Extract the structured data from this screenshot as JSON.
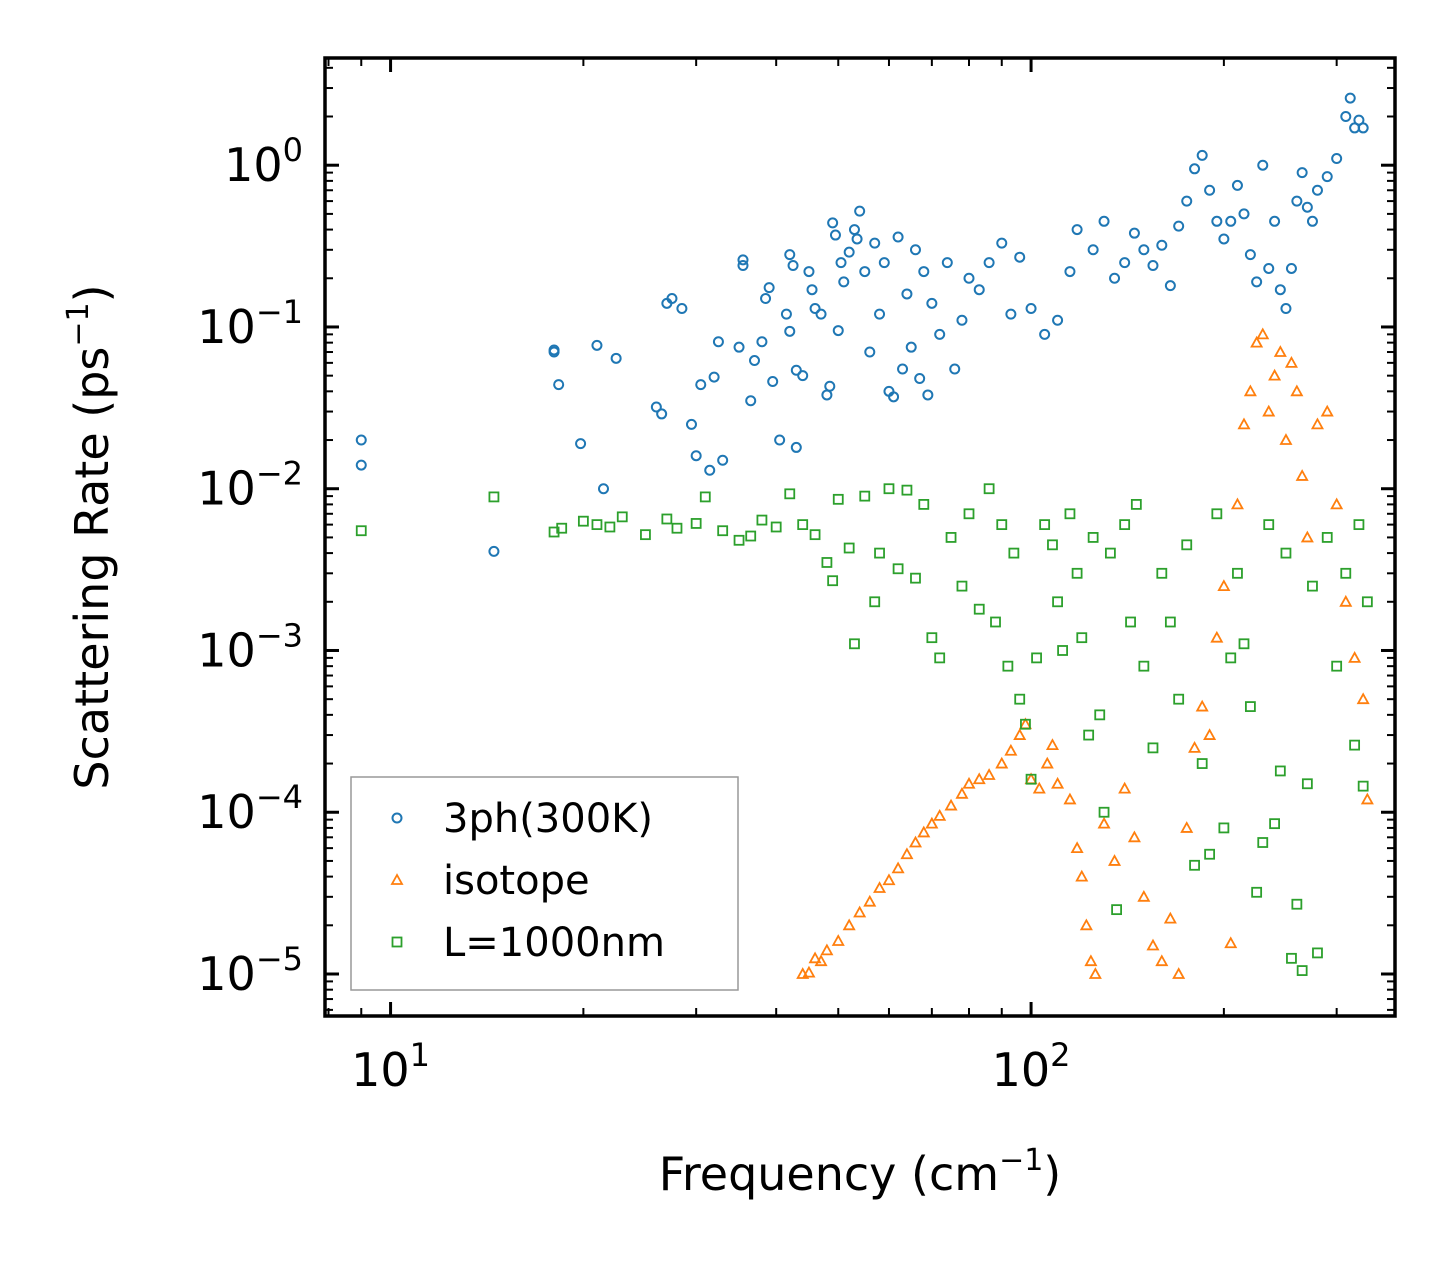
{
  "chart_data": {
    "type": "scatter",
    "title": "",
    "xlabel": "Frequency (cm",
    "xlabel_sup": "−1",
    "xlabel_tail": ")",
    "ylabel": "Scattering Rate (ps",
    "ylabel_sup": "−1",
    "ylabel_tail": ")",
    "xscale": "log",
    "yscale": "log",
    "xlim": [
      7.9,
      370
    ],
    "ylim": [
      5.5e-06,
      4.6
    ],
    "grid": false,
    "legend_position": "lower-left",
    "x_ticks": [
      {
        "value": 10,
        "base": "10",
        "exp": "1"
      },
      {
        "value": 100,
        "base": "10",
        "exp": "2"
      }
    ],
    "y_ticks": [
      {
        "value": 1,
        "base": "10",
        "exp": "0"
      },
      {
        "value": 0.1,
        "base": "10",
        "exp": "−1"
      },
      {
        "value": 0.01,
        "base": "10",
        "exp": "−2"
      },
      {
        "value": 0.001,
        "base": "10",
        "exp": "−3"
      },
      {
        "value": 0.0001,
        "base": "10",
        "exp": "−4"
      },
      {
        "value": 1e-05,
        "base": "10",
        "exp": "−5"
      }
    ],
    "series": [
      {
        "name": "3ph(300K)",
        "marker": "circle",
        "color": "#1f77b4",
        "sample_points": [
          [
            9.0,
            0.02
          ],
          [
            9.0,
            0.014
          ],
          [
            14.5,
            0.0041
          ],
          [
            18.0,
            0.072
          ],
          [
            18.0,
            0.07
          ],
          [
            18.3,
            0.044
          ],
          [
            19.8,
            0.019
          ],
          [
            21.0,
            0.077
          ],
          [
            21.5,
            0.01
          ],
          [
            22.5,
            0.064
          ],
          [
            26.0,
            0.032
          ],
          [
            26.5,
            0.029
          ],
          [
            27.0,
            0.14
          ],
          [
            27.5,
            0.15
          ],
          [
            28.5,
            0.13
          ],
          [
            29.5,
            0.025
          ],
          [
            30.0,
            0.016
          ],
          [
            30.5,
            0.044
          ],
          [
            31.5,
            0.013
          ],
          [
            32.0,
            0.049
          ],
          [
            32.5,
            0.081
          ],
          [
            33.0,
            0.015
          ],
          [
            35.0,
            0.075
          ],
          [
            35.5,
            0.26
          ],
          [
            35.5,
            0.24
          ],
          [
            36.5,
            0.035
          ],
          [
            37.0,
            0.062
          ],
          [
            38.0,
            0.081
          ],
          [
            38.5,
            0.15
          ],
          [
            39.0,
            0.175
          ],
          [
            39.5,
            0.046
          ],
          [
            40.5,
            0.02
          ],
          [
            41.5,
            0.12
          ],
          [
            42.0,
            0.094
          ],
          [
            42.0,
            0.28
          ],
          [
            42.5,
            0.24
          ],
          [
            43.0,
            0.054
          ],
          [
            43.0,
            0.018
          ],
          [
            44.0,
            0.05
          ],
          [
            45.0,
            0.22
          ],
          [
            45.5,
            0.17
          ],
          [
            46.0,
            0.13
          ],
          [
            47.0,
            0.12
          ],
          [
            48.0,
            0.038
          ],
          [
            48.5,
            0.043
          ],
          [
            49.0,
            0.44
          ],
          [
            49.5,
            0.37
          ],
          [
            50.0,
            0.095
          ],
          [
            50.5,
            0.25
          ],
          [
            51.0,
            0.19
          ],
          [
            52.0,
            0.29
          ],
          [
            53.0,
            0.4
          ],
          [
            53.5,
            0.35
          ],
          [
            54.0,
            0.52
          ],
          [
            55.0,
            0.22
          ],
          [
            56.0,
            0.07
          ],
          [
            57.0,
            0.33
          ],
          [
            58.0,
            0.12
          ],
          [
            59.0,
            0.25
          ],
          [
            60.0,
            0.04
          ],
          [
            61.0,
            0.037
          ],
          [
            62.0,
            0.36
          ],
          [
            63.0,
            0.055
          ],
          [
            64.0,
            0.16
          ],
          [
            65.0,
            0.075
          ],
          [
            66.0,
            0.3
          ],
          [
            67.0,
            0.048
          ],
          [
            68.0,
            0.22
          ],
          [
            69.0,
            0.038
          ],
          [
            70.0,
            0.14
          ],
          [
            72.0,
            0.09
          ],
          [
            74.0,
            0.25
          ],
          [
            76.0,
            0.055
          ],
          [
            78.0,
            0.11
          ],
          [
            80.0,
            0.2
          ],
          [
            83.0,
            0.17
          ],
          [
            86.0,
            0.25
          ],
          [
            90.0,
            0.33
          ],
          [
            93.0,
            0.12
          ],
          [
            96.0,
            0.27
          ],
          [
            100.0,
            0.13
          ],
          [
            105.0,
            0.09
          ],
          [
            110.0,
            0.11
          ],
          [
            115.0,
            0.22
          ],
          [
            118.0,
            0.4
          ],
          [
            125.0,
            0.3
          ],
          [
            130.0,
            0.45
          ],
          [
            135.0,
            0.2
          ],
          [
            140.0,
            0.25
          ],
          [
            145.0,
            0.38
          ],
          [
            150.0,
            0.3
          ],
          [
            155.0,
            0.24
          ],
          [
            160.0,
            0.32
          ],
          [
            165.0,
            0.18
          ],
          [
            170.0,
            0.42
          ],
          [
            175.0,
            0.6
          ],
          [
            180.0,
            0.95
          ],
          [
            185.0,
            1.15
          ],
          [
            190.0,
            0.7
          ],
          [
            195.0,
            0.45
          ],
          [
            200.0,
            0.35
          ],
          [
            205.0,
            0.45
          ],
          [
            210.0,
            0.75
          ],
          [
            215.0,
            0.5
          ],
          [
            220.0,
            0.28
          ],
          [
            225.0,
            0.19
          ],
          [
            230.0,
            1.0
          ],
          [
            235.0,
            0.23
          ],
          [
            240.0,
            0.45
          ],
          [
            245.0,
            0.17
          ],
          [
            250.0,
            0.13
          ],
          [
            255.0,
            0.23
          ],
          [
            260.0,
            0.6
          ],
          [
            265.0,
            0.9
          ],
          [
            270.0,
            0.55
          ],
          [
            275.0,
            0.45
          ],
          [
            280.0,
            0.7
          ],
          [
            290.0,
            0.85
          ],
          [
            300.0,
            1.1
          ],
          [
            310.0,
            2.0
          ],
          [
            315.0,
            2.6
          ],
          [
            320.0,
            1.7
          ],
          [
            325.0,
            1.9
          ],
          [
            330.0,
            1.7
          ]
        ]
      },
      {
        "name": "isotope",
        "marker": "triangle",
        "color": "#ff7f0e",
        "sample_points": [
          [
            44.0,
            1e-05
          ],
          [
            45.0,
            1.02e-05
          ],
          [
            46.0,
            1.25e-05
          ],
          [
            47.0,
            1.2e-05
          ],
          [
            48.0,
            1.4e-05
          ],
          [
            50.0,
            1.6e-05
          ],
          [
            52.0,
            2e-05
          ],
          [
            54.0,
            2.4e-05
          ],
          [
            56.0,
            2.8e-05
          ],
          [
            58.0,
            3.4e-05
          ],
          [
            60.0,
            3.8e-05
          ],
          [
            62.0,
            4.5e-05
          ],
          [
            64.0,
            5.5e-05
          ],
          [
            66.0,
            6.5e-05
          ],
          [
            68.0,
            7.5e-05
          ],
          [
            70.0,
            8.5e-05
          ],
          [
            72.0,
            9.5e-05
          ],
          [
            75.0,
            0.00011
          ],
          [
            78.0,
            0.00013
          ],
          [
            80.0,
            0.00015
          ],
          [
            83.0,
            0.00016
          ],
          [
            86.0,
            0.00017
          ],
          [
            90.0,
            0.0002
          ],
          [
            93.0,
            0.00024
          ],
          [
            96.0,
            0.0003
          ],
          [
            98.0,
            0.00035
          ],
          [
            100.0,
            0.00016
          ],
          [
            103.0,
            0.00014
          ],
          [
            106.0,
            0.0002
          ],
          [
            108.0,
            0.00026
          ],
          [
            110.0,
            0.00015
          ],
          [
            115.0,
            0.00012
          ],
          [
            118.0,
            6e-05
          ],
          [
            120.0,
            4e-05
          ],
          [
            122.0,
            2e-05
          ],
          [
            124.0,
            1.2e-05
          ],
          [
            126.0,
            1e-05
          ],
          [
            130.0,
            8.5e-05
          ],
          [
            135.0,
            5e-05
          ],
          [
            140.0,
            0.00014
          ],
          [
            145.0,
            7e-05
          ],
          [
            150.0,
            3e-05
          ],
          [
            155.0,
            1.5e-05
          ],
          [
            160.0,
            1.2e-05
          ],
          [
            165.0,
            2.2e-05
          ],
          [
            170.0,
            1e-05
          ],
          [
            175.0,
            8e-05
          ],
          [
            180.0,
            0.00025
          ],
          [
            185.0,
            0.00045
          ],
          [
            190.0,
            0.0003
          ],
          [
            195.0,
            0.0012
          ],
          [
            200.0,
            0.0025
          ],
          [
            205.0,
            1.55e-05
          ],
          [
            210.0,
            0.008
          ],
          [
            215.0,
            0.025
          ],
          [
            220.0,
            0.04
          ],
          [
            225.0,
            0.08
          ],
          [
            230.0,
            0.09
          ],
          [
            235.0,
            0.03
          ],
          [
            240.0,
            0.05
          ],
          [
            245.0,
            0.07
          ],
          [
            250.0,
            0.02
          ],
          [
            255.0,
            0.06
          ],
          [
            260.0,
            0.04
          ],
          [
            265.0,
            0.012
          ],
          [
            270.0,
            0.005
          ],
          [
            280.0,
            0.025
          ],
          [
            290.0,
            0.03
          ],
          [
            300.0,
            0.008
          ],
          [
            310.0,
            0.002
          ],
          [
            320.0,
            0.0009
          ],
          [
            330.0,
            0.0005
          ],
          [
            335.0,
            0.00012
          ]
        ]
      },
      {
        "name": "L=1000nm",
        "marker": "square",
        "color": "#2ca02c",
        "sample_points": [
          [
            9.0,
            0.0055
          ],
          [
            14.5,
            0.0089
          ],
          [
            18.0,
            0.0054
          ],
          [
            18.5,
            0.0057
          ],
          [
            20.0,
            0.0063
          ],
          [
            21.0,
            0.006
          ],
          [
            22.0,
            0.0058
          ],
          [
            23.0,
            0.0067
          ],
          [
            25.0,
            0.0052
          ],
          [
            27.0,
            0.0065
          ],
          [
            28.0,
            0.0057
          ],
          [
            30.0,
            0.0061
          ],
          [
            31.0,
            0.0089
          ],
          [
            33.0,
            0.0055
          ],
          [
            35.0,
            0.0048
          ],
          [
            36.5,
            0.0051
          ],
          [
            38.0,
            0.0064
          ],
          [
            40.0,
            0.0058
          ],
          [
            42.0,
            0.0093
          ],
          [
            44.0,
            0.006
          ],
          [
            46.0,
            0.0052
          ],
          [
            48.0,
            0.0035
          ],
          [
            49.0,
            0.0027
          ],
          [
            50.0,
            0.0086
          ],
          [
            52.0,
            0.0043
          ],
          [
            53.0,
            0.0011
          ],
          [
            55.0,
            0.009
          ],
          [
            57.0,
            0.002
          ],
          [
            58.0,
            0.004
          ],
          [
            60.0,
            0.01
          ],
          [
            62.0,
            0.0032
          ],
          [
            64.0,
            0.0098
          ],
          [
            66.0,
            0.0028
          ],
          [
            68.0,
            0.008
          ],
          [
            70.0,
            0.0012
          ],
          [
            72.0,
            0.0009
          ],
          [
            75.0,
            0.005
          ],
          [
            78.0,
            0.0025
          ],
          [
            80.0,
            0.007
          ],
          [
            83.0,
            0.0018
          ],
          [
            86.0,
            0.01
          ],
          [
            88.0,
            0.0015
          ],
          [
            90.0,
            0.006
          ],
          [
            92.0,
            0.0008
          ],
          [
            94.0,
            0.004
          ],
          [
            96.0,
            0.0005
          ],
          [
            98.0,
            0.00035
          ],
          [
            100.0,
            0.00016
          ],
          [
            102.0,
            0.0009
          ],
          [
            105.0,
            0.006
          ],
          [
            108.0,
            0.0045
          ],
          [
            110.0,
            0.002
          ],
          [
            112.0,
            0.001
          ],
          [
            115.0,
            0.007
          ],
          [
            118.0,
            0.003
          ],
          [
            120.0,
            0.0012
          ],
          [
            123.0,
            0.0003
          ],
          [
            125.0,
            0.005
          ],
          [
            128.0,
            0.0004
          ],
          [
            130.0,
            0.0001
          ],
          [
            133.0,
            0.004
          ],
          [
            136.0,
            2.5e-05
          ],
          [
            140.0,
            0.006
          ],
          [
            143.0,
            0.0015
          ],
          [
            146.0,
            0.008
          ],
          [
            150.0,
            0.0008
          ],
          [
            155.0,
            0.00025
          ],
          [
            160.0,
            0.003
          ],
          [
            165.0,
            0.0015
          ],
          [
            170.0,
            0.0005
          ],
          [
            175.0,
            0.0045
          ],
          [
            180.0,
            4.7e-05
          ],
          [
            185.0,
            0.0002
          ],
          [
            190.0,
            5.5e-05
          ],
          [
            195.0,
            0.007
          ],
          [
            200.0,
            8e-05
          ],
          [
            205.0,
            0.0009
          ],
          [
            210.0,
            0.003
          ],
          [
            215.0,
            0.0011
          ],
          [
            220.0,
            0.00045
          ],
          [
            225.0,
            3.2e-05
          ],
          [
            230.0,
            6.5e-05
          ],
          [
            235.0,
            0.006
          ],
          [
            240.0,
            8.5e-05
          ],
          [
            245.0,
            0.00018
          ],
          [
            250.0,
            0.004
          ],
          [
            255.0,
            1.25e-05
          ],
          [
            260.0,
            2.7e-05
          ],
          [
            265.0,
            1.05e-05
          ],
          [
            270.0,
            0.00015
          ],
          [
            275.0,
            0.0025
          ],
          [
            280.0,
            1.35e-05
          ],
          [
            290.0,
            0.005
          ],
          [
            300.0,
            0.0008
          ],
          [
            310.0,
            0.003
          ],
          [
            320.0,
            0.00026
          ],
          [
            325.0,
            0.006
          ],
          [
            330.0,
            0.000145
          ],
          [
            335.0,
            0.002
          ]
        ]
      }
    ]
  }
}
